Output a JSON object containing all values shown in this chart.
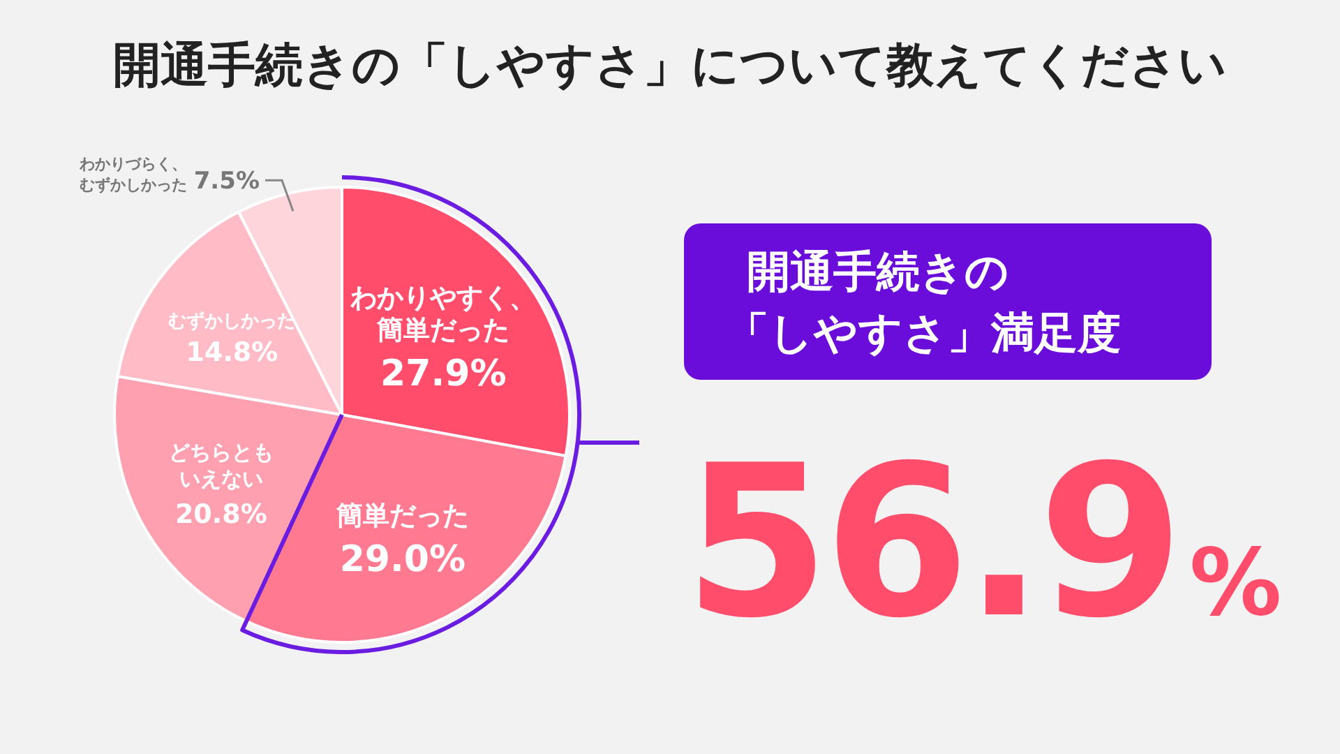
{
  "chart_data": {
    "type": "pie",
    "title": "開通手続きの「しやすさ」について教えてください",
    "categories": [
      "わかりやすく、簡単だった",
      "簡単だった",
      "どちらともいえない",
      "むずかしかった",
      "わかりづらく、むずかしかった"
    ],
    "values": [
      27.9,
      29.0,
      20.8,
      14.8,
      7.5
    ],
    "value_labels": [
      "27.9%",
      "29.0%",
      "20.8%",
      "14.8%",
      "7.5%"
    ],
    "colors": [
      "#ff4d6b",
      "#ff7a90",
      "#ffa0b0",
      "#ffbcc7",
      "#ffd5dc"
    ],
    "annotations": [
      "開通手続きの",
      "「しやすさ」満足度",
      "56.9%"
    ]
  }
}
